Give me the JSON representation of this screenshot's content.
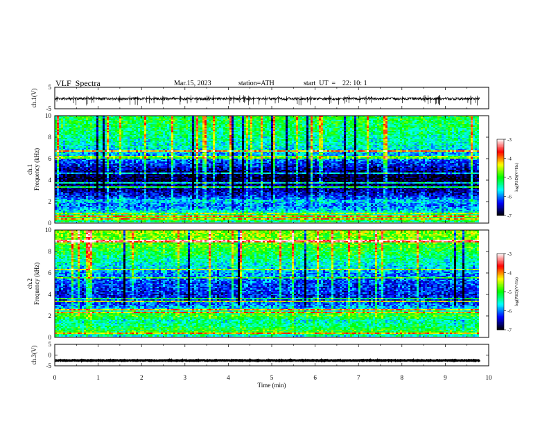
{
  "header": {
    "title": "VLF  Spectra",
    "date": "Mar.15, 2023",
    "station": "station=ATH",
    "start_ut": "start  UT  =    22: 10: 1"
  },
  "chart_data": [
    {
      "type": "line",
      "name": "ch.1 waveform",
      "ylabel": "ch.1(V)",
      "ylim": [
        -5,
        5
      ],
      "yticks": [
        "5",
        "-5"
      ],
      "xlim": [
        0,
        10
      ],
      "x_extent_min": 9.8,
      "baseline_v": -0.3,
      "noise_amplitude_v": 0.6,
      "spikes": "frequent short negative spikes reaching about -3 V"
    },
    {
      "type": "heatmap",
      "name": "ch.1 spectrogram",
      "ylabel": "ch.1 Frequency  (kHz)",
      "ylim": [
        0,
        10
      ],
      "yticks": [
        "10",
        "8",
        "6",
        "4",
        "2",
        "0"
      ],
      "xlim": [
        0,
        10
      ],
      "x_extent_min": 9.8,
      "profile": [
        {
          "f": 0.0,
          "v": -5.3
        },
        {
          "f": 0.4,
          "v": -5.0
        },
        {
          "f": 0.8,
          "v": -5.4
        },
        {
          "f": 1.2,
          "v": -5.8
        },
        {
          "f": 1.6,
          "v": -6.1
        },
        {
          "f": 2.0,
          "v": -5.7
        },
        {
          "f": 2.4,
          "v": -6.3
        },
        {
          "f": 3.0,
          "v": -6.6
        },
        {
          "f": 3.6,
          "v": -6.8
        },
        {
          "f": 4.2,
          "v": -6.95
        },
        {
          "f": 4.8,
          "v": -6.7
        },
        {
          "f": 5.4,
          "v": -6.3
        },
        {
          "f": 6.2,
          "v": -5.9
        },
        {
          "f": 7.0,
          "v": -5.6
        },
        {
          "f": 8.0,
          "v": -5.4
        },
        {
          "f": 9.0,
          "v": -5.2
        },
        {
          "f": 10.0,
          "v": -5.1
        }
      ]
    },
    {
      "type": "heatmap",
      "name": "ch.2 spectrogram",
      "ylabel": "ch.2 Frequency  (kHz)",
      "ylim": [
        0,
        10
      ],
      "yticks": [
        "10",
        "8",
        "6",
        "4",
        "2",
        "0"
      ],
      "xlim": [
        0,
        10
      ],
      "x_extent_min": 9.8,
      "profile": [
        {
          "f": 0.0,
          "v": -5.6
        },
        {
          "f": 0.5,
          "v": -5.0
        },
        {
          "f": 1.0,
          "v": -5.3
        },
        {
          "f": 1.5,
          "v": -5.5
        },
        {
          "f": 2.0,
          "v": -4.9
        },
        {
          "f": 2.5,
          "v": -5.6
        },
        {
          "f": 3.0,
          "v": -6.1
        },
        {
          "f": 3.6,
          "v": -6.4
        },
        {
          "f": 4.2,
          "v": -6.3
        },
        {
          "f": 5.0,
          "v": -6.2
        },
        {
          "f": 6.0,
          "v": -5.9
        },
        {
          "f": 7.0,
          "v": -5.5
        },
        {
          "f": 8.0,
          "v": -5.1
        },
        {
          "f": 9.0,
          "v": -4.8
        },
        {
          "f": 10.0,
          "v": -4.6
        }
      ]
    },
    {
      "type": "line",
      "name": "ch.3 waveform",
      "ylabel": "ch.3(V)",
      "ylim": [
        -5,
        5
      ],
      "yticks": [
        "5",
        "0",
        "-5"
      ],
      "xlim": [
        0,
        10
      ],
      "x_extent_min": 9.8,
      "baseline_v": -2.5,
      "noise_amplitude_v": 0.15
    }
  ],
  "colorbar": {
    "label": "log(PSD)(V²/Hz)",
    "range": [
      -7,
      -3
    ],
    "ticks": [
      "-3",
      "-4",
      "-5",
      "-6",
      "-7"
    ],
    "colormap": [
      "#000000",
      "#0000ff",
      "#00ffff",
      "#00ff00",
      "#ffff00",
      "#ff0000",
      "#ffffff"
    ]
  },
  "x_axis": {
    "label": "Time  (min)",
    "ticks": [
      "0",
      "1",
      "2",
      "3",
      "4",
      "5",
      "6",
      "7",
      "8",
      "9",
      "10"
    ]
  }
}
